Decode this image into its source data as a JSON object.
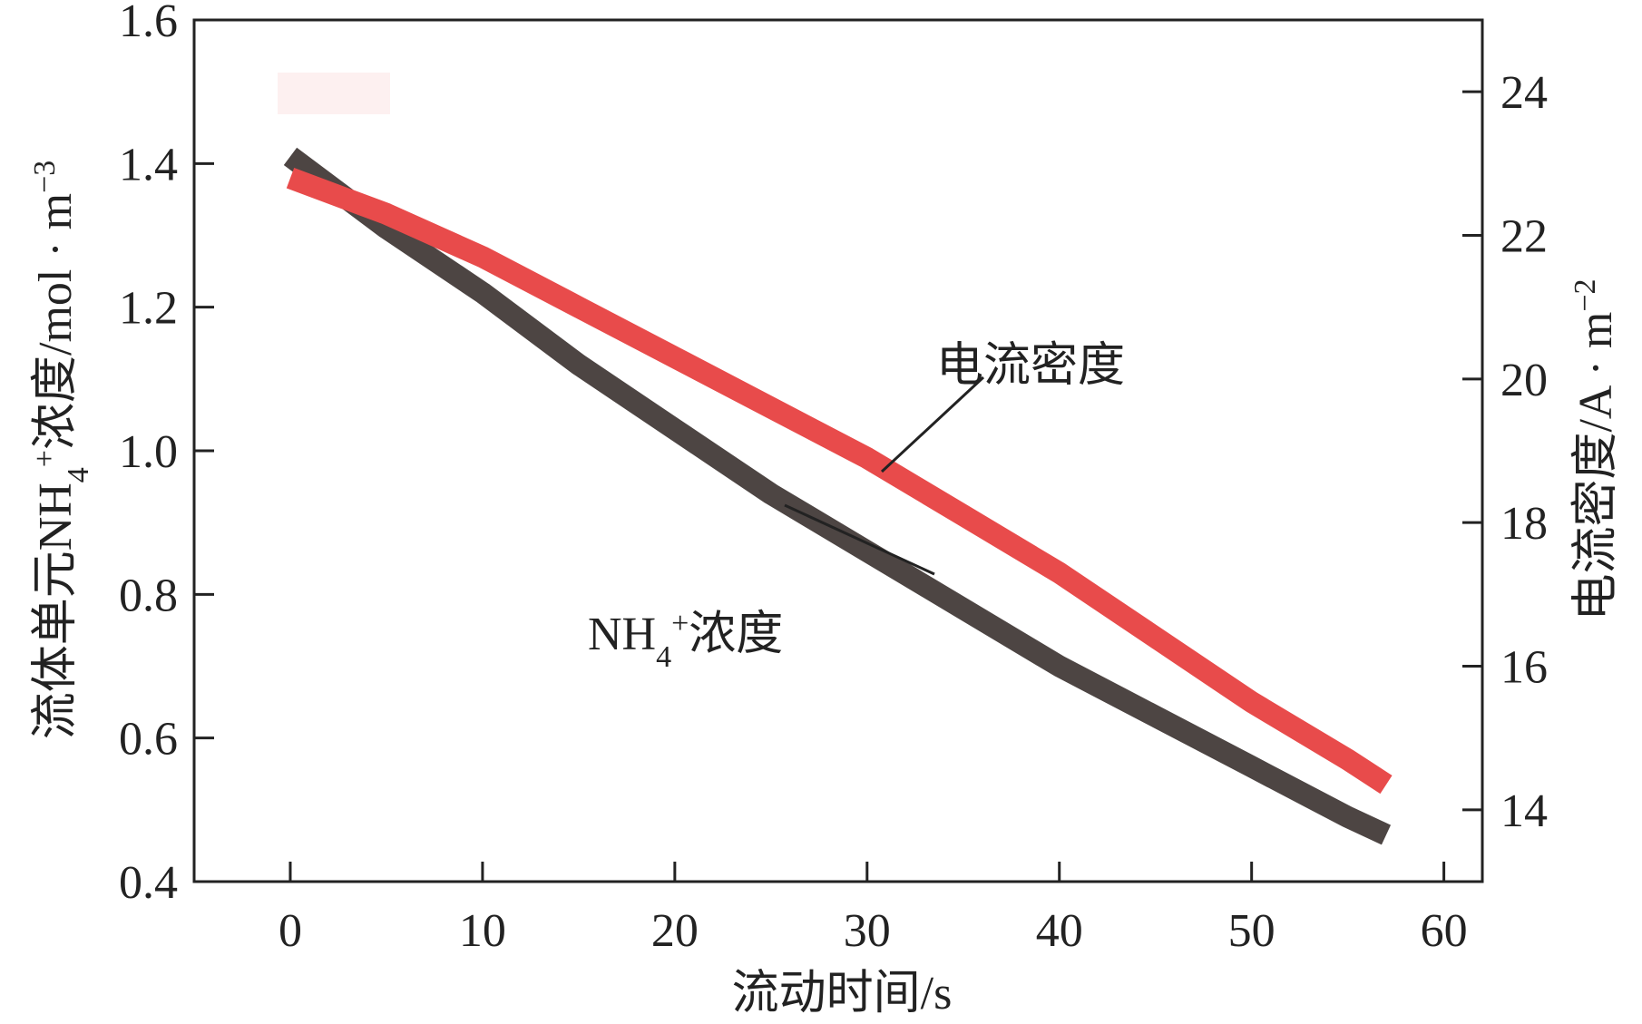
{
  "chart_data": {
    "type": "line",
    "title": "",
    "xlabel": "流动时间/s",
    "ylabel_left": {
      "pre": "流体单元NH",
      "sub": "4",
      "sup": "+",
      "post": "浓度/mol · m",
      "exp": "−3"
    },
    "ylabel_right": {
      "pre": "电流密度/A · m",
      "exp": "−2"
    },
    "xlim": [
      -5,
      62
    ],
    "ylim_left": [
      0.4,
      1.6
    ],
    "ylim_right": [
      13.0,
      25.0
    ],
    "x_ticks": [
      0,
      10,
      20,
      30,
      40,
      50,
      60
    ],
    "x_tick_labels": [
      "0",
      "10",
      "20",
      "30",
      "40",
      "50",
      "60"
    ],
    "y_left_ticks": [
      0.4,
      0.6,
      0.8,
      1.0,
      1.2,
      1.4,
      1.6
    ],
    "y_left_tick_labels": [
      "0.4",
      "0.6",
      "0.8",
      "1.0",
      "1.2",
      "1.4",
      "1.6"
    ],
    "y_right_ticks": [
      14,
      16,
      18,
      20,
      22,
      24
    ],
    "y_right_tick_labels": [
      "14",
      "16",
      "18",
      "20",
      "22",
      "24"
    ],
    "grid": false,
    "series": [
      {
        "axis": "left",
        "color": "#4d4543",
        "x": [
          0,
          5,
          10,
          15,
          20,
          25,
          30,
          35,
          40,
          45,
          50,
          55,
          57
        ],
        "values": [
          1.41,
          1.31,
          1.22,
          1.12,
          1.03,
          0.94,
          0.86,
          0.78,
          0.7,
          0.63,
          0.56,
          0.49,
          0.465
        ]
      },
      {
        "axis": "right",
        "color": "#e84b4b",
        "x": [
          0,
          5,
          10,
          15,
          20,
          25,
          30,
          35,
          40,
          45,
          50,
          55,
          57
        ],
        "values": [
          22.8,
          22.3,
          21.7,
          21.0,
          20.3,
          19.6,
          18.9,
          18.1,
          17.3,
          16.4,
          15.5,
          14.7,
          14.35
        ]
      }
    ],
    "annotations": {
      "current_label": "电流密度",
      "nh4_label": {
        "pre": "NH",
        "sub": "4",
        "sup": "+",
        "post": "浓度"
      }
    },
    "legend_patch_color": "#fdf0f0"
  }
}
